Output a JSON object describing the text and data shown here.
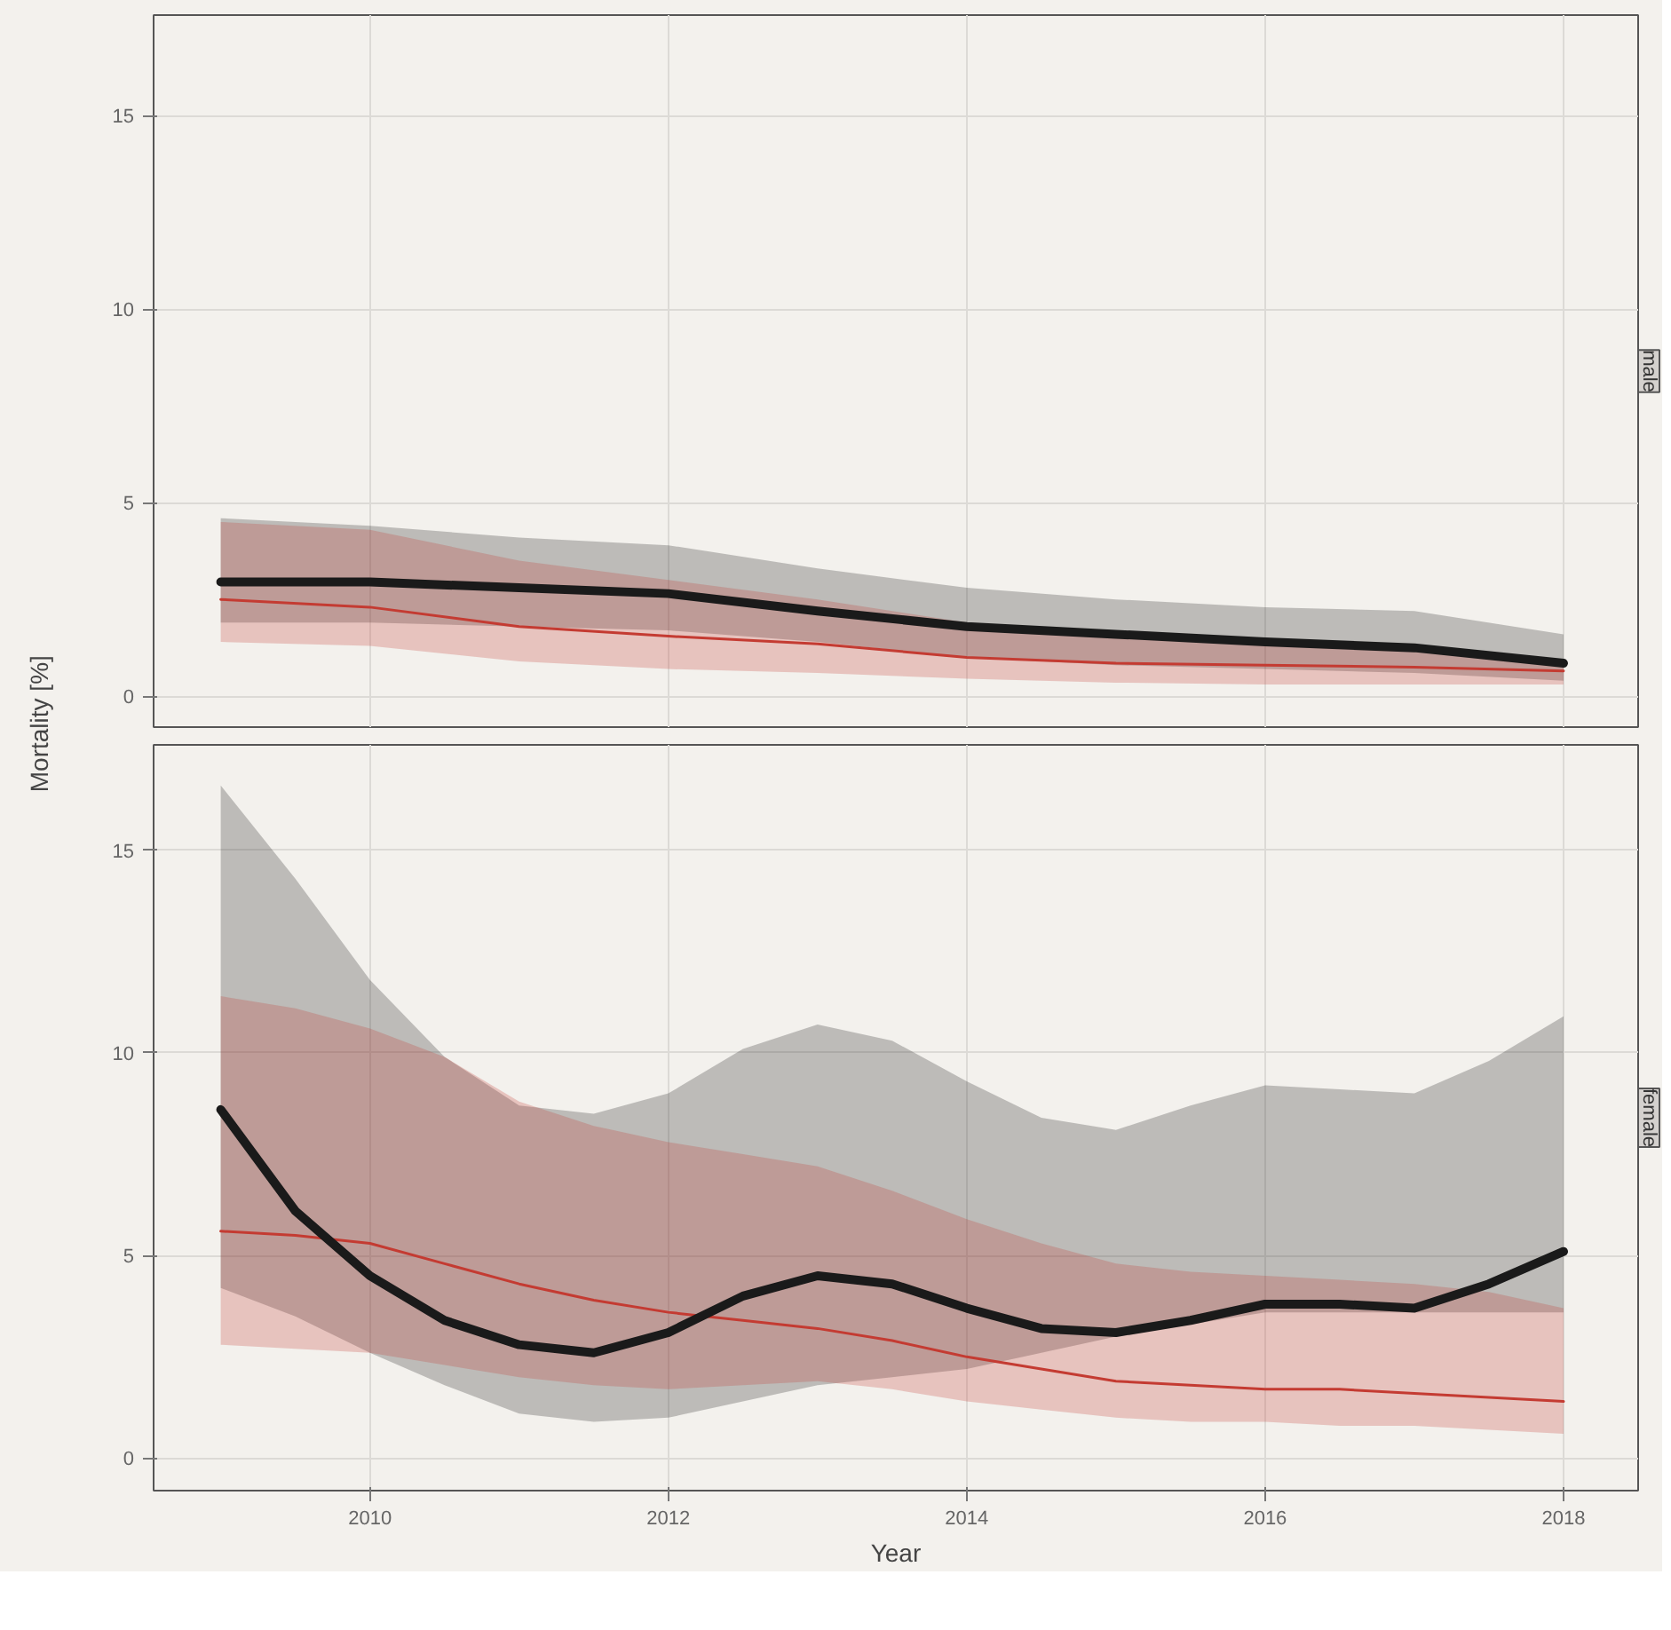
{
  "chart_data": [
    {
      "type": "line",
      "title": "male",
      "ylabel": "Mortality [%]",
      "xlim": [
        2008.55,
        2018.5
      ],
      "ylim": [
        -0.8,
        17.6
      ],
      "xticks": [
        2010,
        2012,
        2014,
        2016,
        2018
      ],
      "yticks": [
        0,
        5,
        10,
        15
      ],
      "grid": true,
      "tick_labels": "y",
      "x": [
        2009,
        2010,
        2011,
        2012,
        2013,
        2014,
        2015,
        2016,
        2017,
        2018
      ],
      "series": [
        {
          "color": "#1a1a1a",
          "values": [
            2.95,
            2.95,
            2.8,
            2.65,
            2.2,
            1.8,
            1.6,
            1.4,
            1.25,
            0.85
          ],
          "lower": [
            1.9,
            1.9,
            1.8,
            1.7,
            1.4,
            1.0,
            0.8,
            0.7,
            0.6,
            0.4
          ],
          "upper": [
            4.6,
            4.4,
            4.1,
            3.9,
            3.3,
            2.8,
            2.5,
            2.3,
            2.2,
            1.6
          ]
        },
        {
          "color": "#c43b32",
          "values": [
            2.5,
            2.3,
            1.8,
            1.55,
            1.35,
            1.0,
            0.85,
            0.8,
            0.75,
            0.65
          ],
          "lower": [
            1.4,
            1.3,
            0.9,
            0.7,
            0.6,
            0.45,
            0.35,
            0.3,
            0.3,
            0.3
          ],
          "upper": [
            4.5,
            4.3,
            3.5,
            3.0,
            2.5,
            1.9,
            1.6,
            1.4,
            1.2,
            0.9
          ]
        }
      ]
    },
    {
      "type": "line",
      "title": "female",
      "xlabel": "Year",
      "xlim": [
        2008.55,
        2018.5
      ],
      "ylim": [
        -0.8,
        17.6
      ],
      "xticks": [
        2010,
        2012,
        2014,
        2016,
        2018
      ],
      "yticks": [
        0,
        5,
        10,
        15
      ],
      "grid": true,
      "x": [
        2009,
        2009.5,
        2010,
        2010.5,
        2011,
        2011.5,
        2012,
        2012.5,
        2013,
        2013.5,
        2014,
        2014.5,
        2015,
        2015.5,
        2016,
        2016.5,
        2017,
        2017.5,
        2018
      ],
      "series": [
        {
          "color": "#1a1a1a",
          "values": [
            8.6,
            6.1,
            4.5,
            3.4,
            2.8,
            2.6,
            3.1,
            4.0,
            4.5,
            4.3,
            3.7,
            3.2,
            3.1,
            3.4,
            3.8,
            3.8,
            3.7,
            4.3,
            5.1
          ],
          "lower": [
            4.2,
            3.5,
            2.6,
            1.8,
            1.1,
            0.9,
            1.0,
            1.4,
            1.8,
            2.0,
            2.2,
            2.6,
            3.0,
            3.3,
            3.6,
            3.6,
            3.6,
            3.6,
            3.6
          ],
          "upper": [
            16.6,
            14.3,
            11.8,
            9.9,
            8.7,
            8.5,
            9.0,
            10.1,
            10.7,
            10.3,
            9.3,
            8.4,
            8.1,
            8.7,
            9.2,
            9.1,
            9.0,
            9.8,
            10.9
          ]
        },
        {
          "color": "#c43b32",
          "values": [
            5.6,
            5.5,
            5.3,
            4.8,
            4.3,
            3.9,
            3.6,
            3.4,
            3.2,
            2.9,
            2.5,
            2.2,
            1.9,
            1.8,
            1.7,
            1.7,
            1.6,
            1.5,
            1.4
          ],
          "lower": [
            2.8,
            2.7,
            2.6,
            2.3,
            2.0,
            1.8,
            1.7,
            1.8,
            1.9,
            1.7,
            1.4,
            1.2,
            1.0,
            0.9,
            0.9,
            0.8,
            0.8,
            0.7,
            0.6
          ],
          "upper": [
            11.4,
            11.1,
            10.6,
            9.9,
            8.8,
            8.2,
            7.8,
            7.5,
            7.2,
            6.6,
            5.9,
            5.3,
            4.8,
            4.6,
            4.5,
            4.4,
            4.3,
            4.1,
            3.7
          ]
        }
      ]
    }
  ]
}
